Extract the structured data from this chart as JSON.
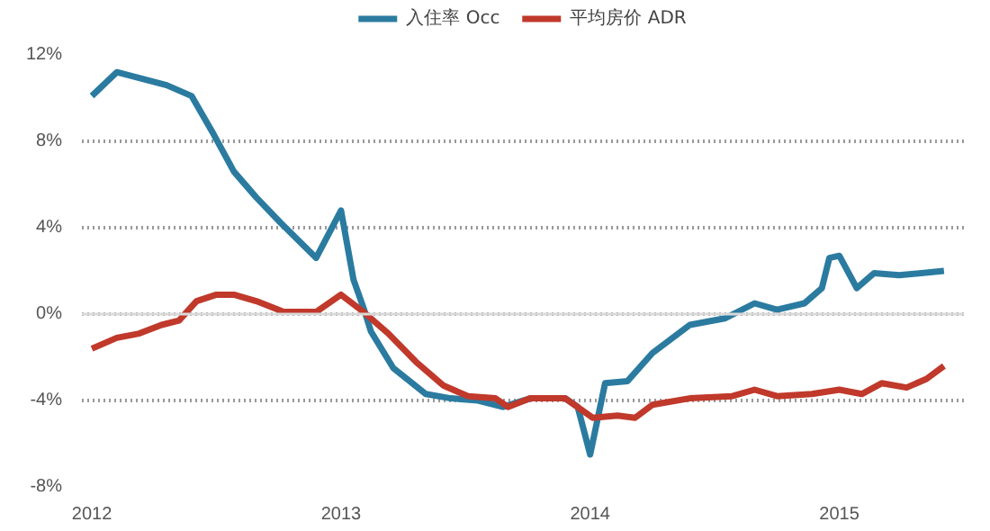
{
  "chart_data": {
    "type": "line",
    "x": [
      2012.0,
      2012.1,
      2012.2,
      2012.3,
      2012.4,
      2012.49,
      2012.57,
      2012.66,
      2012.76,
      2012.9,
      2013.0,
      2013.05,
      2013.09,
      2013.12,
      2013.21,
      2013.34,
      2013.44,
      2013.55,
      2013.65,
      2013.76,
      2013.9,
      2013.95,
      2014.0,
      2014.06,
      2014.15,
      2014.25,
      2014.4,
      2014.54,
      2014.66,
      2014.75,
      2014.86,
      2014.93,
      2014.96,
      2015.0,
      2015.07,
      2015.14,
      2015.24,
      2015.42
    ],
    "series": [
      {
        "name": "入住率 Occ",
        "color": "#2b7ba0",
        "values": [
          10.1,
          11.2,
          10.9,
          10.6,
          10.1,
          8.3,
          6.6,
          5.4,
          4.2,
          2.6,
          4.8,
          1.6,
          0.3,
          -0.8,
          -2.5,
          -3.7,
          -3.9,
          -4.0,
          -4.3,
          -3.9,
          -3.9,
          -4.3,
          -6.5,
          -3.2,
          -3.1,
          -1.8,
          -0.5,
          -0.2,
          0.5,
          0.2,
          0.5,
          1.2,
          2.6,
          2.7,
          1.2,
          1.9,
          1.8,
          2.0
        ]
      },
      {
        "name": "平均房价 ADR",
        "color": "#c0392b",
        "x": [
          2012.0,
          2012.1,
          2012.19,
          2012.28,
          2012.35,
          2012.42,
          2012.5,
          2012.57,
          2012.66,
          2012.77,
          2012.9,
          2013.0,
          2013.09,
          2013.19,
          2013.3,
          2013.41,
          2013.51,
          2013.62,
          2013.67,
          2013.76,
          2013.9,
          2014.01,
          2014.11,
          2014.18,
          2014.25,
          2014.4,
          2014.57,
          2014.66,
          2014.75,
          2014.89,
          2015.0,
          2015.09,
          2015.17,
          2015.27,
          2015.35,
          2015.42
        ],
        "values": [
          -1.6,
          -1.1,
          -0.9,
          -0.5,
          -0.3,
          0.6,
          0.9,
          0.9,
          0.6,
          0.1,
          0.1,
          0.9,
          0.1,
          -0.9,
          -2.2,
          -3.3,
          -3.8,
          -3.9,
          -4.3,
          -3.9,
          -3.9,
          -4.8,
          -4.7,
          -4.8,
          -4.2,
          -3.9,
          -3.8,
          -3.5,
          -3.8,
          -3.7,
          -3.5,
          -3.7,
          -3.2,
          -3.4,
          -3.0,
          -2.4
        ]
      }
    ],
    "xlim": [
      2011.96,
      2015.5
    ],
    "xticks": [
      2012,
      2013,
      2014,
      2015
    ],
    "ylim": [
      -8,
      12
    ],
    "yticks": [
      {
        "value": -8,
        "label": "-8%"
      },
      {
        "value": -4,
        "label": "-4%"
      },
      {
        "value": 0,
        "label": "0%"
      },
      {
        "value": 4,
        "label": "4%"
      },
      {
        "value": 8,
        "label": "8%"
      },
      {
        "value": 12,
        "label": "12%"
      }
    ],
    "grid": "y",
    "legend": "top",
    "line_style": "solid",
    "marker": "none",
    "ref_lines": [
      {
        "axis": "y",
        "value": 0,
        "label": null,
        "color": "#d9d9d9",
        "line_style": "solid"
      }
    ]
  }
}
